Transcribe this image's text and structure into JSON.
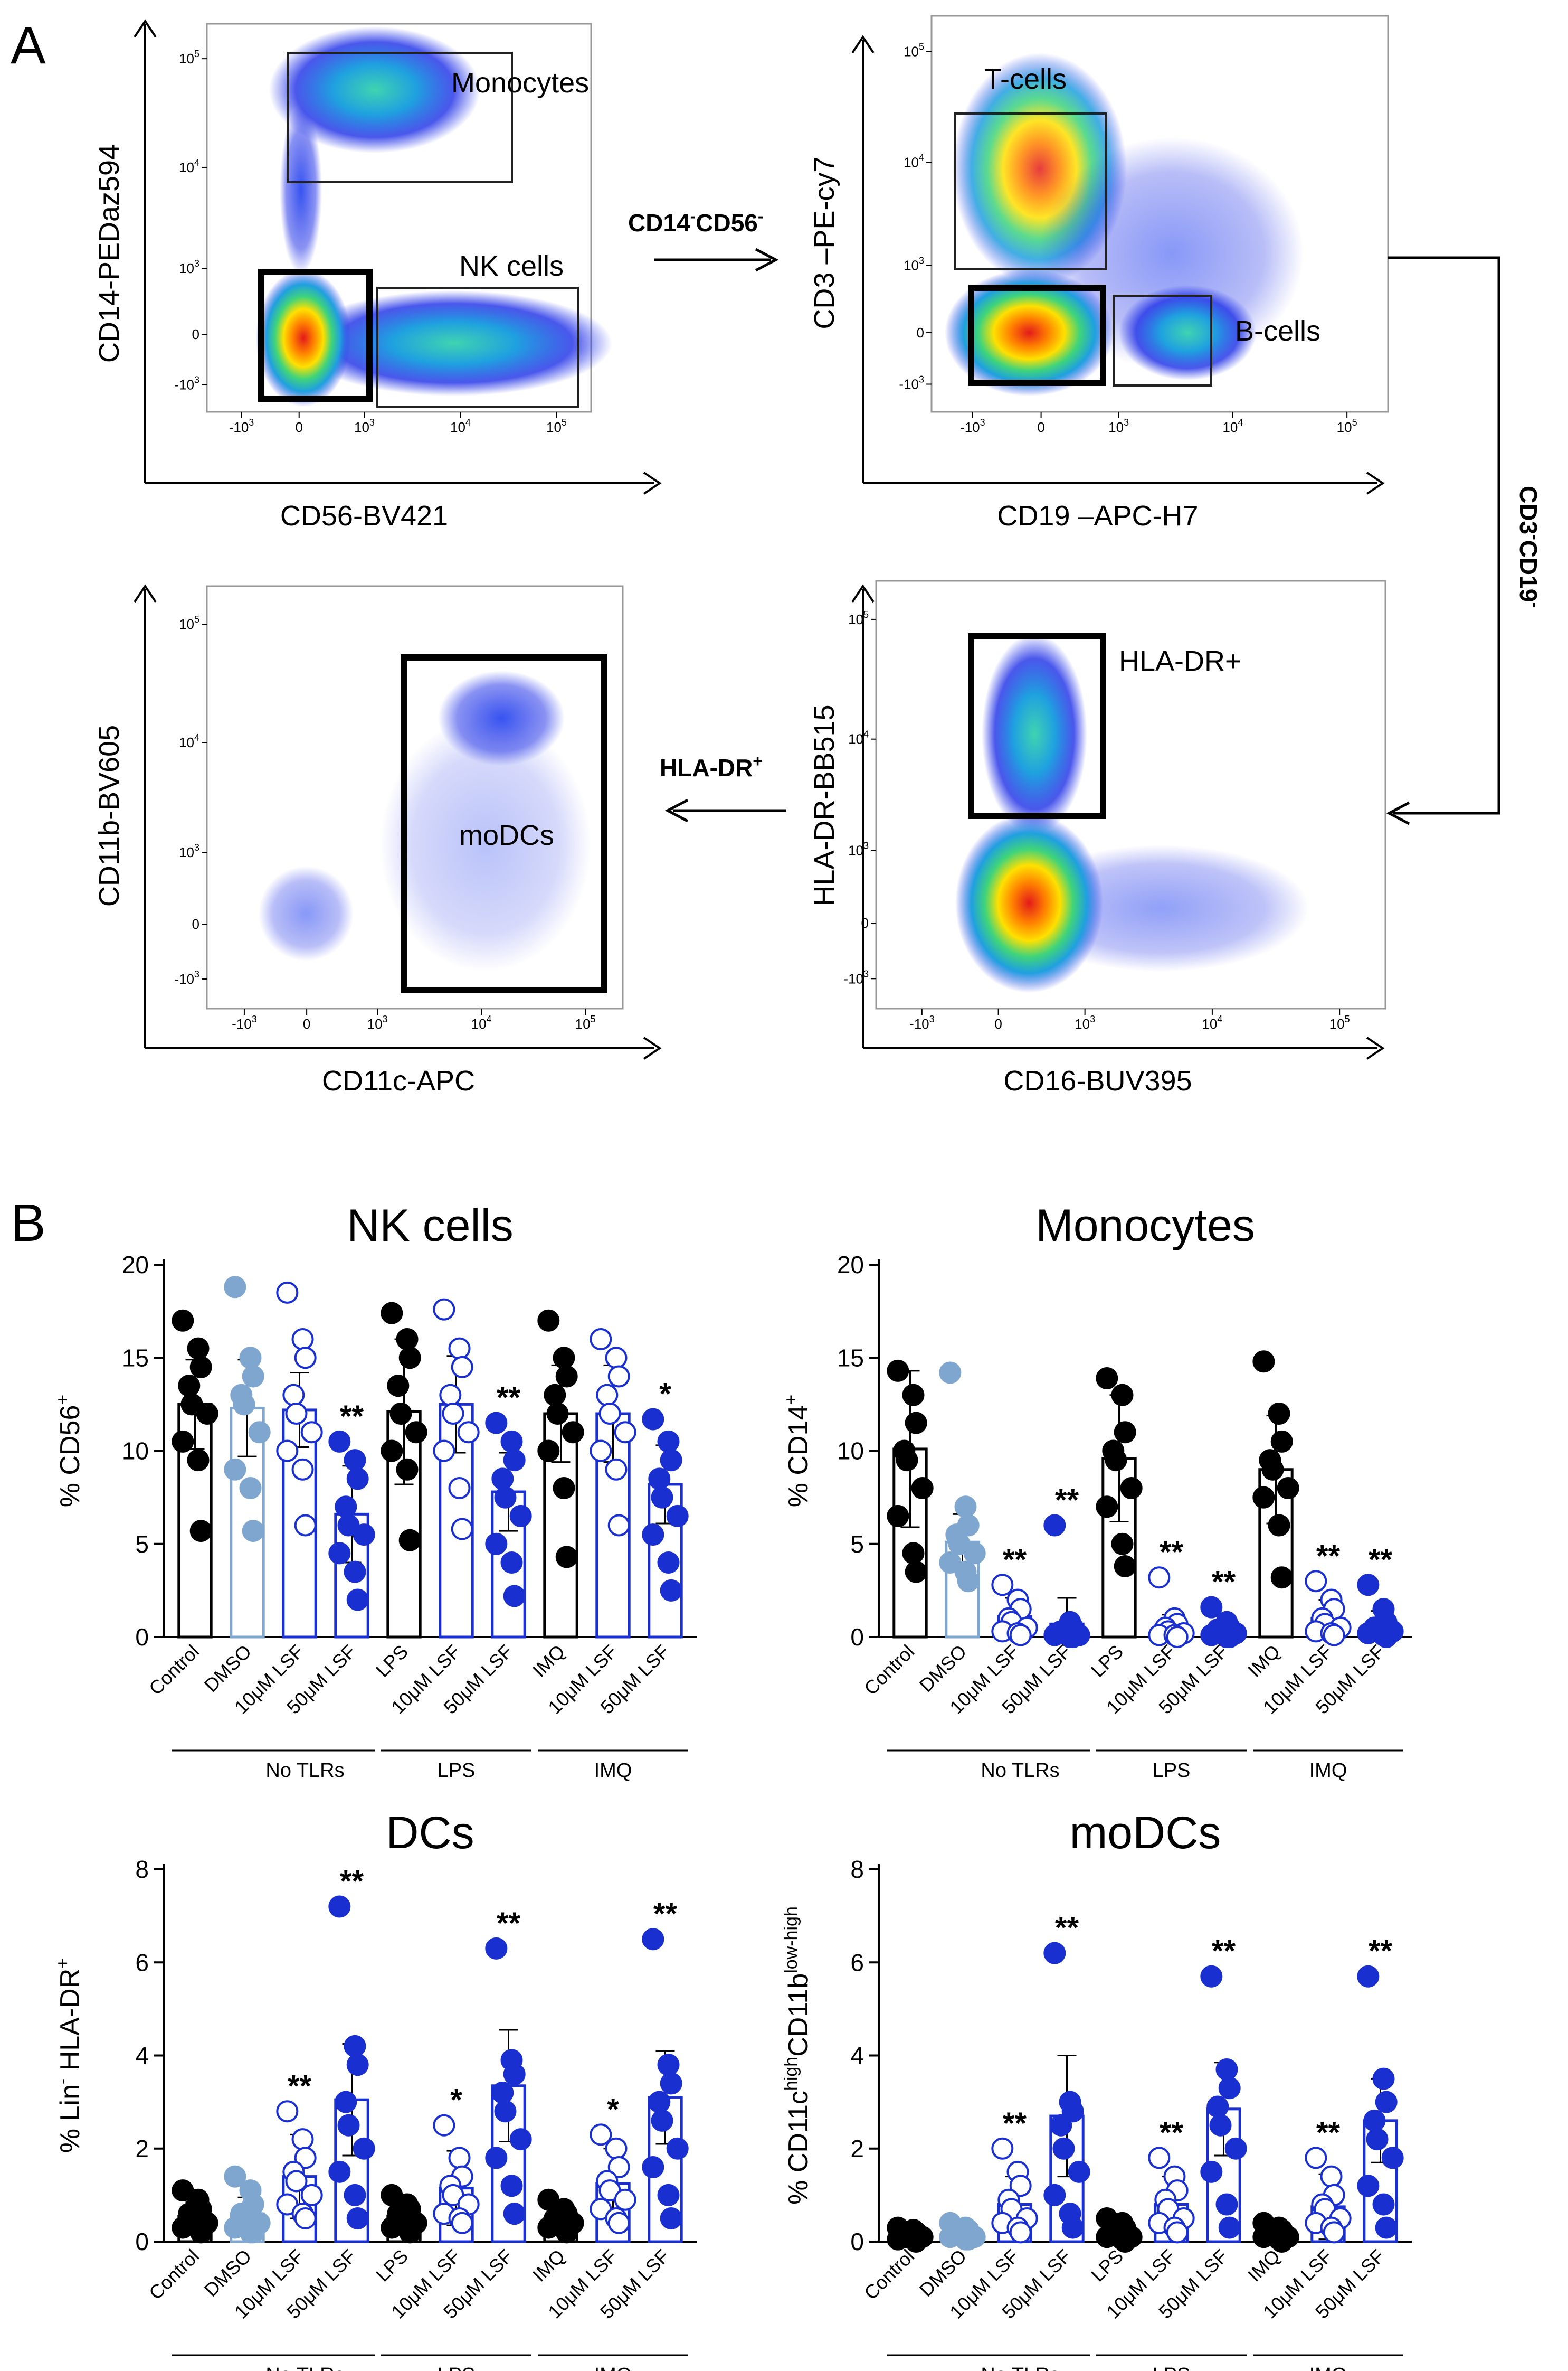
{
  "panel_a": {
    "label": "A",
    "plots": [
      {
        "id": "nk-gate",
        "xlabel": "CD56-BV421",
        "ylabel": "CD14-PEDaz594",
        "gates": [
          {
            "label": "Monocytes"
          },
          {
            "label": "NK cells"
          }
        ]
      },
      {
        "id": "t-b-gate",
        "xlabel": "CD19 –APC-H7",
        "ylabel": "CD3 –PE-cy7",
        "gates": [
          {
            "label": "T-cells"
          },
          {
            "label": "B-cells"
          }
        ]
      },
      {
        "id": "hla-gate",
        "xlabel": "CD16-BUV395",
        "ylabel": "HLA-DR-BB515",
        "gates": [
          {
            "label": "HLA-DR+"
          }
        ]
      },
      {
        "id": "modc-gate",
        "xlabel": "CD11c-APC",
        "ylabel": "CD11b-BV605",
        "gates": [
          {
            "label": "moDCs"
          }
        ]
      }
    ],
    "flow_labels": {
      "cd14_base": "CD14",
      "cd14_sup": "-",
      "cd56_base": "CD56",
      "cd56_sup": "-",
      "cd3_base": "CD3",
      "cd3_sup": "-",
      "cd19_base": "CD19",
      "cd19_sup": "-",
      "hladr_base": "HLA-DR",
      "hladr_sup": "+"
    },
    "tick_labels": {
      "x": [
        "-10",
        "0",
        "10",
        "10",
        "10"
      ],
      "x_exp": [
        "3",
        "",
        "3",
        "4",
        "5"
      ],
      "y": [
        "-10",
        "0",
        "10",
        "10",
        "10"
      ],
      "y_exp": [
        "3",
        "",
        "3",
        "4",
        "5"
      ]
    }
  },
  "panel_b": {
    "label": "B",
    "groups": [
      {
        "label": "No  TLRs"
      },
      {
        "label": "LPS"
      },
      {
        "label": "IMQ"
      }
    ]
  },
  "chart_data": [
    {
      "type": "bar",
      "id": "nk-cells",
      "title": "NK cells",
      "ylabel": "% CD56+",
      "ylabel_base": "% CD56",
      "ylabel_sup": "+",
      "ylim": [
        0,
        20
      ],
      "yticks": [
        0,
        5,
        10,
        15,
        20
      ],
      "categories": [
        "Control",
        "DMSO",
        "10μM LSF",
        "50μM LSF",
        "LPS",
        "10μM LSF",
        "50μM LSF",
        "IMQ",
        "10μM LSF",
        "50μM LSF"
      ],
      "values": [
        12.5,
        12.3,
        12.2,
        6.6,
        12.1,
        12.5,
        7.8,
        12.0,
        12.0,
        8.2
      ],
      "sd": [
        2.4,
        2.6,
        2.0,
        2.6,
        3.9,
        2.6,
        2.1,
        2.6,
        2.6,
        2.1
      ],
      "significance": [
        "",
        "",
        "",
        "**",
        "",
        "",
        "**",
        "",
        "",
        "*"
      ],
      "points": [
        [
          17.0,
          15.5,
          14.5,
          13.5,
          12.5,
          12.0,
          10.5,
          9.5,
          5.7
        ],
        [
          18.8,
          15.0,
          14.0,
          13.0,
          12.5,
          11.0,
          9.0,
          8.0,
          5.7
        ],
        [
          18.5,
          16.0,
          15.0,
          13.0,
          12.0,
          11.0,
          10.0,
          9.0,
          6.0
        ],
        [
          10.5,
          9.5,
          8.5,
          7.0,
          6.0,
          5.5,
          4.5,
          3.5,
          2.0
        ],
        [
          17.4,
          16.0,
          15.0,
          13.5,
          12.0,
          11.0,
          10.0,
          9.0,
          5.2
        ],
        [
          17.6,
          15.5,
          14.5,
          13.0,
          12.0,
          11.0,
          10.0,
          8.0,
          5.8
        ],
        [
          11.5,
          10.5,
          9.5,
          8.5,
          7.5,
          6.5,
          5.0,
          4.0,
          2.2
        ],
        [
          17.0,
          15.0,
          14.0,
          13.0,
          12.0,
          11.0,
          10.0,
          8.0,
          4.3
        ],
        [
          16.0,
          15.0,
          14.0,
          13.0,
          12.0,
          11.0,
          10.0,
          9.0,
          6.0
        ],
        [
          11.7,
          10.5,
          9.5,
          8.5,
          7.5,
          6.5,
          5.5,
          4.0,
          2.5
        ]
      ],
      "colors": [
        "#000000",
        "#7fa6cf",
        "#1a2fd0",
        "#1a2fd0",
        "#000000",
        "#1a2fd0",
        "#1a2fd0",
        "#000000",
        "#1a2fd0",
        "#1a2fd0"
      ],
      "filled": [
        true,
        true,
        false,
        true,
        true,
        false,
        true,
        true,
        false,
        true
      ]
    },
    {
      "type": "bar",
      "id": "monocytes",
      "title": "Monocytes",
      "ylabel": "% CD14+",
      "ylabel_base": "% CD14",
      "ylabel_sup": "+",
      "ylim": [
        0,
        20
      ],
      "yticks": [
        0,
        5,
        10,
        15,
        20
      ],
      "categories": [
        "Control",
        "DMSO",
        "10μM LSF",
        "50μM LSF",
        "LPS",
        "10μM LSF",
        "50μM LSF",
        "IMQ",
        "10μM LSF",
        "50μM LSF"
      ],
      "values": [
        10.1,
        5.1,
        1.1,
        0.7,
        9.6,
        0.6,
        0.5,
        9.0,
        1.0,
        0.6
      ],
      "sd": [
        4.2,
        1.5,
        1.0,
        1.4,
        3.4,
        0.6,
        0.6,
        2.9,
        1.0,
        0.8
      ],
      "significance": [
        "",
        "",
        "**",
        "**",
        "",
        "**",
        "**",
        "",
        "**",
        "**"
      ],
      "points": [
        [
          14.3,
          13.0,
          11.5,
          10.0,
          9.5,
          8.0,
          6.5,
          4.5,
          3.5
        ],
        [
          14.2,
          7.0,
          6.0,
          5.5,
          5.0,
          4.5,
          4.0,
          3.5,
          3.0
        ],
        [
          2.8,
          2.0,
          1.5,
          1.0,
          0.8,
          0.5,
          0.3,
          0.2,
          0.1
        ],
        [
          6.0,
          0.8,
          0.5,
          0.3,
          0.2,
          0.1,
          0.1,
          0.0,
          0.0
        ],
        [
          13.9,
          13.0,
          11.0,
          10.0,
          9.5,
          8.0,
          7.0,
          5.0,
          3.8
        ],
        [
          3.2,
          1.0,
          0.7,
          0.5,
          0.3,
          0.2,
          0.1,
          0.1,
          0.0
        ],
        [
          1.6,
          0.8,
          0.5,
          0.4,
          0.3,
          0.2,
          0.1,
          0.0,
          0.0
        ],
        [
          14.8,
          12.0,
          10.5,
          9.5,
          9.0,
          8.0,
          7.5,
          6.0,
          3.2
        ],
        [
          3.0,
          2.0,
          1.5,
          1.0,
          0.7,
          0.5,
          0.3,
          0.2,
          0.1
        ],
        [
          2.8,
          1.5,
          0.8,
          0.5,
          0.4,
          0.3,
          0.2,
          0.1,
          0.0
        ]
      ],
      "colors": [
        "#000000",
        "#7fa6cf",
        "#1a2fd0",
        "#1a2fd0",
        "#000000",
        "#1a2fd0",
        "#1a2fd0",
        "#000000",
        "#1a2fd0",
        "#1a2fd0"
      ],
      "filled": [
        true,
        true,
        false,
        true,
        true,
        false,
        true,
        true,
        false,
        true
      ]
    },
    {
      "type": "bar",
      "id": "dcs",
      "title": "DCs",
      "ylabel": "% Lin- HLA-DR+",
      "ylabel_base": "% Lin",
      "ylabel_sup": "-",
      "ylabel_base2": " HLA-DR",
      "ylabel_sup2": "+",
      "ylim": [
        0,
        8
      ],
      "yticks": [
        0,
        2,
        4,
        6,
        8
      ],
      "categories": [
        "Control",
        "DMSO",
        "10μM LSF",
        "50μM LSF",
        "LPS",
        "10μM LSF",
        "50μM LSF",
        "IMQ",
        "10μM LSF",
        "50μM LSF"
      ],
      "values": [
        0.55,
        0.6,
        1.4,
        3.05,
        0.55,
        1.15,
        3.35,
        0.5,
        1.25,
        3.1
      ],
      "sd": [
        0.3,
        0.35,
        0.9,
        1.2,
        0.3,
        0.8,
        1.2,
        0.25,
        0.75,
        1.0
      ],
      "significance": [
        "",
        "",
        "**",
        "**",
        "",
        "*",
        "**",
        "",
        "*",
        "**"
      ],
      "points": [
        [
          1.1,
          0.9,
          0.7,
          0.6,
          0.5,
          0.4,
          0.3,
          0.3,
          0.2
        ],
        [
          1.4,
          1.1,
          0.8,
          0.6,
          0.5,
          0.4,
          0.3,
          0.2,
          0.2
        ],
        [
          2.8,
          2.2,
          1.8,
          1.5,
          1.3,
          1.0,
          0.8,
          0.6,
          0.5
        ],
        [
          7.2,
          4.2,
          3.8,
          3.0,
          2.5,
          2.0,
          1.5,
          1.0,
          0.5
        ],
        [
          1.0,
          0.8,
          0.7,
          0.6,
          0.5,
          0.4,
          0.3,
          0.3,
          0.2
        ],
        [
          2.5,
          1.8,
          1.4,
          1.2,
          1.0,
          0.8,
          0.6,
          0.5,
          0.4
        ],
        [
          6.3,
          3.9,
          3.6,
          3.2,
          2.8,
          2.2,
          1.8,
          1.2,
          0.6
        ],
        [
          0.9,
          0.7,
          0.6,
          0.5,
          0.4,
          0.4,
          0.3,
          0.3,
          0.2
        ],
        [
          2.3,
          2.0,
          1.6,
          1.3,
          1.1,
          0.9,
          0.7,
          0.5,
          0.4
        ],
        [
          6.5,
          3.8,
          3.4,
          3.0,
          2.6,
          2.0,
          1.6,
          1.0,
          0.5
        ]
      ],
      "colors": [
        "#000000",
        "#7fa6cf",
        "#1a2fd0",
        "#1a2fd0",
        "#000000",
        "#1a2fd0",
        "#1a2fd0",
        "#000000",
        "#1a2fd0",
        "#1a2fd0"
      ],
      "filled": [
        true,
        true,
        false,
        true,
        true,
        false,
        true,
        true,
        false,
        true
      ]
    },
    {
      "type": "bar",
      "id": "modcs",
      "title": "moDCs",
      "ylabel": "% CD11chighCD11blow-high",
      "ylabel_base": "% CD11c",
      "ylabel_sup": "high",
      "ylabel_base2": "CD11b",
      "ylabel_sup2": "low-high",
      "ylim": [
        0,
        8
      ],
      "yticks": [
        0,
        2,
        4,
        6,
        8
      ],
      "categories": [
        "Control",
        "DMSO",
        "10μM LSF",
        "50μM LSF",
        "LPS",
        "10μM LSF",
        "50μM LSF",
        "IMQ",
        "10μM LSF",
        "50μM LSF"
      ],
      "values": [
        0.12,
        0.2,
        0.8,
        2.7,
        0.15,
        0.8,
        2.85,
        0.15,
        0.75,
        2.6
      ],
      "sd": [
        0.08,
        0.1,
        0.6,
        1.3,
        0.1,
        0.6,
        1.0,
        0.08,
        0.7,
        0.9
      ],
      "significance": [
        "",
        "",
        "**",
        "**",
        "",
        "**",
        "**",
        "",
        "**",
        "**"
      ],
      "points": [
        [
          0.3,
          0.25,
          0.2,
          0.15,
          0.1,
          0.1,
          0.05,
          0.05,
          0.0
        ],
        [
          0.4,
          0.3,
          0.25,
          0.2,
          0.15,
          0.1,
          0.1,
          0.05,
          0.05
        ],
        [
          2.0,
          1.5,
          1.2,
          0.9,
          0.7,
          0.5,
          0.4,
          0.3,
          0.2
        ],
        [
          6.2,
          3.0,
          2.8,
          2.5,
          2.0,
          1.5,
          1.0,
          0.6,
          0.3
        ],
        [
          0.5,
          0.4,
          0.3,
          0.2,
          0.15,
          0.1,
          0.1,
          0.05,
          0.0
        ],
        [
          1.8,
          1.4,
          1.1,
          0.9,
          0.7,
          0.5,
          0.4,
          0.3,
          0.2
        ],
        [
          5.7,
          3.7,
          3.3,
          2.9,
          2.5,
          2.0,
          1.5,
          0.8,
          0.3
        ],
        [
          0.4,
          0.3,
          0.25,
          0.2,
          0.15,
          0.1,
          0.1,
          0.05,
          0.0
        ],
        [
          1.8,
          1.4,
          1.0,
          0.8,
          0.7,
          0.5,
          0.4,
          0.3,
          0.2
        ],
        [
          5.7,
          3.5,
          3.0,
          2.6,
          2.2,
          1.8,
          1.2,
          0.8,
          0.3
        ]
      ],
      "colors": [
        "#000000",
        "#7fa6cf",
        "#1a2fd0",
        "#1a2fd0",
        "#000000",
        "#1a2fd0",
        "#1a2fd0",
        "#000000",
        "#1a2fd0",
        "#1a2fd0"
      ],
      "filled": [
        true,
        true,
        false,
        true,
        true,
        false,
        true,
        true,
        false,
        true
      ]
    }
  ]
}
